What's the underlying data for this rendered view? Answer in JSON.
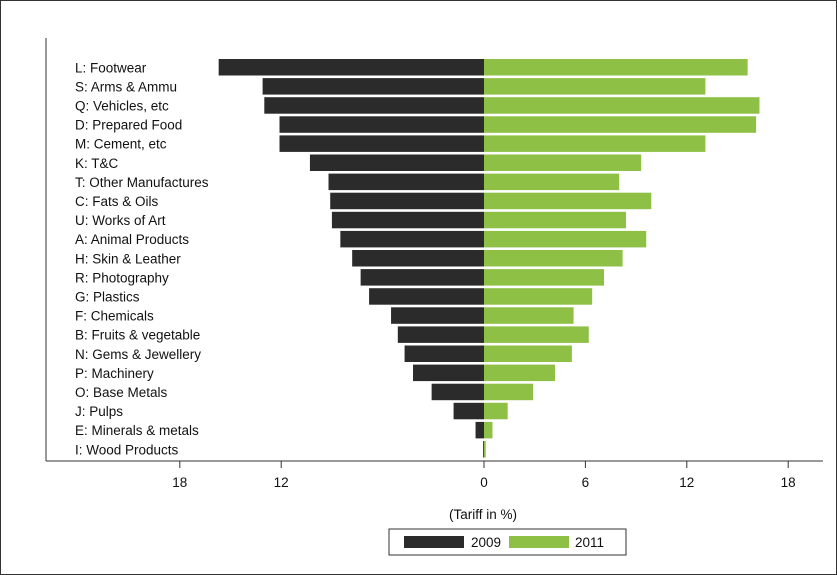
{
  "chart_data": {
    "type": "bar",
    "orientation": "horizontal-back-to-back",
    "title": "",
    "xlabel": "(Tariff in %)",
    "ylabel": "",
    "xlim": [
      -18,
      18
    ],
    "ticks": [
      {
        "value": -18,
        "label": "18"
      },
      {
        "value": -12,
        "label": "12"
      },
      {
        "value": 0,
        "label": "0"
      },
      {
        "value": 6,
        "label": "6"
      },
      {
        "value": 12,
        "label": "12"
      },
      {
        "value": 18,
        "label": "18"
      }
    ],
    "grid": false,
    "legend_position": "bottom-center",
    "categories": [
      "L: Footwear",
      "S: Arms & Ammu",
      "Q: Vehicles, etc",
      "D: Prepared Food",
      "M: Cement, etc",
      "K: T&C",
      "T: Other Manufactures",
      "C: Fats & Oils",
      "U: Works of Art",
      "A: Animal Products",
      "H: Skin & Leather",
      "R: Photography",
      "G: Plastics",
      "F: Chemicals",
      "B: Fruits & vegetable",
      "N: Gems & Jewellery",
      "P: Machinery",
      "O: Base   Metals",
      "J: Pulps",
      "E: Minerals & metals",
      "I: Wood Products"
    ],
    "series": [
      {
        "name": "2009",
        "color": "#2b2b2b",
        "side": "left",
        "values": [
          15.7,
          13.1,
          13.0,
          12.1,
          12.1,
          10.3,
          9.2,
          9.1,
          9.0,
          8.5,
          7.8,
          7.3,
          6.8,
          5.5,
          5.1,
          4.7,
          4.2,
          3.1,
          1.8,
          0.5,
          0.05
        ]
      },
      {
        "name": "2011",
        "color": "#8dc045",
        "side": "right",
        "values": [
          15.6,
          13.1,
          16.3,
          16.1,
          13.1,
          9.3,
          8.0,
          9.9,
          8.4,
          9.6,
          8.2,
          7.1,
          6.4,
          5.3,
          6.2,
          5.2,
          4.2,
          2.9,
          1.4,
          0.5,
          0.1
        ]
      }
    ]
  }
}
